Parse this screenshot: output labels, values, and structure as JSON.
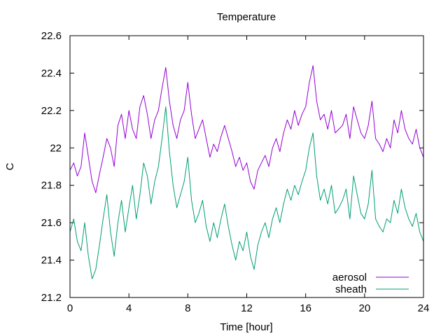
{
  "chart_data": {
    "type": "line",
    "title": "Temperature",
    "xlabel": "Time [hour]",
    "ylabel": "C",
    "xlim": [
      0,
      24
    ],
    "ylim": [
      21.2,
      22.6
    ],
    "xticks": [
      0,
      4,
      8,
      12,
      16,
      20,
      24
    ],
    "xtick_labels": [
      "0",
      "4",
      "8",
      "12",
      "16",
      "20",
      "24"
    ],
    "yticks": [
      21.2,
      21.4,
      21.6,
      21.8,
      22.0,
      22.2,
      22.4,
      22.6
    ],
    "ytick_labels": [
      "21.2",
      "21.4",
      "21.6",
      "21.8",
      "22",
      "22.2",
      "22.4",
      "22.6"
    ],
    "grid": false,
    "legend_position": "bottom-right",
    "series": [
      {
        "name": "aerosol",
        "color": "#9400D3",
        "x": [
          0,
          0.25,
          0.5,
          0.75,
          1.0,
          1.25,
          1.5,
          1.75,
          2.0,
          2.25,
          2.5,
          2.75,
          3.0,
          3.25,
          3.5,
          3.75,
          4.0,
          4.25,
          4.5,
          4.75,
          5.0,
          5.25,
          5.5,
          5.75,
          6.0,
          6.25,
          6.5,
          6.75,
          7.0,
          7.25,
          7.5,
          7.75,
          8.0,
          8.25,
          8.5,
          8.75,
          9.0,
          9.25,
          9.5,
          9.75,
          10.0,
          10.25,
          10.5,
          10.75,
          11.0,
          11.25,
          11.5,
          11.75,
          12.0,
          12.25,
          12.5,
          12.75,
          13.0,
          13.25,
          13.5,
          13.75,
          14.0,
          14.25,
          14.5,
          14.75,
          15.0,
          15.25,
          15.5,
          15.75,
          16.0,
          16.25,
          16.5,
          16.75,
          17.0,
          17.25,
          17.5,
          17.75,
          18.0,
          18.25,
          18.5,
          18.75,
          19.0,
          19.25,
          19.5,
          19.75,
          20.0,
          20.25,
          20.5,
          20.75,
          21.0,
          21.25,
          21.5,
          21.75,
          22.0,
          22.25,
          22.5,
          22.75,
          23.0,
          23.25,
          23.5,
          23.75,
          24.0
        ],
        "values": [
          21.88,
          21.92,
          21.85,
          21.9,
          22.08,
          21.95,
          21.82,
          21.76,
          21.86,
          21.95,
          22.05,
          22.0,
          21.9,
          22.12,
          22.18,
          22.05,
          22.2,
          22.1,
          22.05,
          22.22,
          22.28,
          22.18,
          22.05,
          22.15,
          22.2,
          22.32,
          22.43,
          22.25,
          22.12,
          22.05,
          22.15,
          22.2,
          22.35,
          22.18,
          22.05,
          22.1,
          22.15,
          22.05,
          21.95,
          22.02,
          21.98,
          22.06,
          22.12,
          22.05,
          21.98,
          21.9,
          21.95,
          21.88,
          21.92,
          21.82,
          21.78,
          21.88,
          21.92,
          21.96,
          21.9,
          22.0,
          22.05,
          21.98,
          22.08,
          22.15,
          22.1,
          22.2,
          22.12,
          22.18,
          22.22,
          22.35,
          22.44,
          22.25,
          22.15,
          22.18,
          22.1,
          22.2,
          22.08,
          22.1,
          22.12,
          22.18,
          22.05,
          22.22,
          22.15,
          22.08,
          22.05,
          22.12,
          22.25,
          22.05,
          22.02,
          21.98,
          22.05,
          22.0,
          22.15,
          22.08,
          22.2,
          22.1,
          22.05,
          22.02,
          22.1,
          22.0,
          21.95
        ]
      },
      {
        "name": "sheath",
        "color": "#009E73",
        "x": [
          0,
          0.25,
          0.5,
          0.75,
          1.0,
          1.25,
          1.5,
          1.75,
          2.0,
          2.25,
          2.5,
          2.75,
          3.0,
          3.25,
          3.5,
          3.75,
          4.0,
          4.25,
          4.5,
          4.75,
          5.0,
          5.25,
          5.5,
          5.75,
          6.0,
          6.25,
          6.5,
          6.75,
          7.0,
          7.25,
          7.5,
          7.75,
          8.0,
          8.25,
          8.5,
          8.75,
          9.0,
          9.25,
          9.5,
          9.75,
          10.0,
          10.25,
          10.5,
          10.75,
          11.0,
          11.25,
          11.5,
          11.75,
          12.0,
          12.25,
          12.5,
          12.75,
          13.0,
          13.25,
          13.5,
          13.75,
          14.0,
          14.25,
          14.5,
          14.75,
          15.0,
          15.25,
          15.5,
          15.75,
          16.0,
          16.25,
          16.5,
          16.75,
          17.0,
          17.25,
          17.5,
          17.75,
          18.0,
          18.25,
          18.5,
          18.75,
          19.0,
          19.25,
          19.5,
          19.75,
          20.0,
          20.25,
          20.5,
          20.75,
          21.0,
          21.25,
          21.5,
          21.75,
          22.0,
          22.25,
          22.5,
          22.75,
          23.0,
          23.25,
          23.5,
          23.75,
          24.0
        ],
        "values": [
          21.55,
          21.62,
          21.5,
          21.45,
          21.6,
          21.42,
          21.3,
          21.35,
          21.48,
          21.62,
          21.75,
          21.55,
          21.42,
          21.6,
          21.72,
          21.55,
          21.68,
          21.8,
          21.62,
          21.75,
          21.92,
          21.85,
          21.7,
          21.82,
          21.9,
          22.05,
          22.22,
          21.98,
          21.8,
          21.68,
          21.75,
          21.82,
          21.95,
          21.72,
          21.6,
          21.65,
          21.72,
          21.58,
          21.5,
          21.6,
          21.52,
          21.62,
          21.7,
          21.58,
          21.48,
          21.4,
          21.5,
          21.45,
          21.55,
          21.42,
          21.35,
          21.48,
          21.55,
          21.6,
          21.52,
          21.62,
          21.68,
          21.6,
          21.7,
          21.78,
          21.72,
          21.8,
          21.75,
          21.82,
          21.88,
          22.0,
          22.08,
          21.85,
          21.72,
          21.78,
          21.7,
          21.8,
          21.65,
          21.68,
          21.72,
          21.78,
          21.62,
          21.85,
          21.75,
          21.65,
          21.62,
          21.7,
          21.88,
          21.62,
          21.58,
          21.55,
          21.62,
          21.6,
          21.72,
          21.65,
          21.78,
          21.68,
          21.62,
          21.58,
          21.65,
          21.55,
          21.5
        ]
      }
    ]
  }
}
